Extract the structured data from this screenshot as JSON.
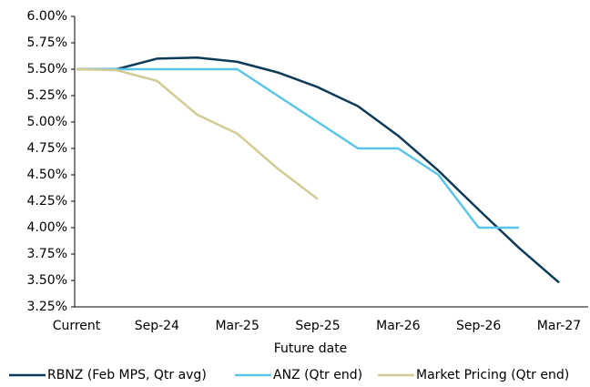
{
  "chart_data": {
    "type": "line",
    "x_label": "Future date",
    "categories": [
      "Current",
      null,
      "Sep-24",
      null,
      "Mar-25",
      null,
      "Sep-25",
      null,
      "Mar-26",
      null,
      "Sep-26",
      null,
      "Mar-27"
    ],
    "series": [
      {
        "name": "RBNZ (Feb MPS, Qtr avg)",
        "color": "#0d3a58",
        "values": [
          5.5,
          5.5,
          5.6,
          5.61,
          5.57,
          5.47,
          5.33,
          5.15,
          4.87,
          4.54,
          4.17,
          3.81,
          3.48
        ]
      },
      {
        "name": "ANZ (Qtr end)",
        "color": "#5bc4ea",
        "values": [
          5.5,
          5.5,
          5.5,
          5.5,
          5.5,
          5.25,
          5.0,
          4.75,
          4.75,
          4.5,
          4.0,
          4.0,
          null
        ]
      },
      {
        "name": "Market Pricing (Qtr end)",
        "color": "#d3cb94",
        "values": [
          5.5,
          5.49,
          5.39,
          5.07,
          4.89,
          4.56,
          4.27,
          null,
          null,
          null,
          null,
          null,
          null
        ]
      }
    ],
    "ylim": [
      3.25,
      6.0
    ],
    "yticks": [
      {
        "value": 3.25,
        "label": "3.25%"
      },
      {
        "value": 3.5,
        "label": "3.50%"
      },
      {
        "value": 3.75,
        "label": "3.75%"
      },
      {
        "value": 4.0,
        "label": "4.00%"
      },
      {
        "value": 4.25,
        "label": "4.25%"
      },
      {
        "value": 4.5,
        "label": "4.50%"
      },
      {
        "value": 4.75,
        "label": "4.75%"
      },
      {
        "value": 5.0,
        "label": "5.00%"
      },
      {
        "value": 5.25,
        "label": "5.25%"
      },
      {
        "value": 5.5,
        "label": "5.50%"
      },
      {
        "value": 5.75,
        "label": "5.75%"
      },
      {
        "value": 6.0,
        "label": "6.00%"
      }
    ],
    "grid": false,
    "legend": "bottom"
  }
}
